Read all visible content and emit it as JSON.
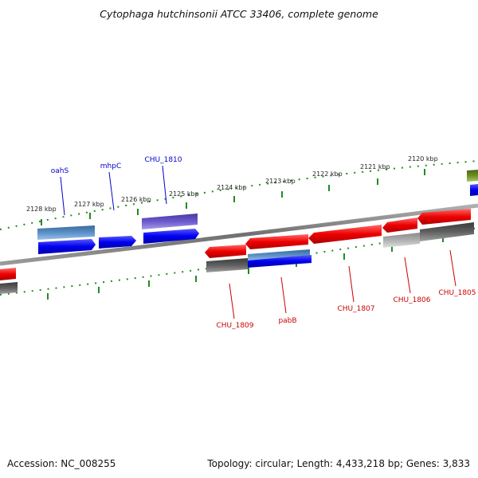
{
  "title": "Cytophaga hutchinsonii ATCC 33406, complete genome",
  "scale": {
    "ticks": [
      {
        "label": "2128 kbp"
      },
      {
        "label": "2127 kbp"
      },
      {
        "label": "2126 kbp"
      },
      {
        "label": "2125 kbp"
      },
      {
        "label": "2124 kbp"
      },
      {
        "label": "2123 kbp"
      },
      {
        "label": "2122 kbp"
      },
      {
        "label": "2121 kbp"
      },
      {
        "label": "2120 kbp"
      }
    ]
  },
  "genes_forward": [
    {
      "label": "oahS",
      "color": "#0000cc"
    },
    {
      "label": "mhpC",
      "color": "#0000cc"
    },
    {
      "label": "CHU_1810",
      "color": "#0000cc"
    }
  ],
  "genes_reverse": [
    {
      "label": "CHU_1809",
      "color": "#cc0000"
    },
    {
      "label": "pabB",
      "color": "#cc0000"
    },
    {
      "label": "CHU_1807",
      "color": "#cc0000"
    },
    {
      "label": "CHU_1806",
      "color": "#cc0000"
    },
    {
      "label": "CHU_1805",
      "color": "#cc0000"
    }
  ],
  "colors": {
    "forward_cds": "#0000ee",
    "reverse_cds": "#ee0000",
    "cog_blue": "#4a7fc0",
    "cog_purple": "#6a5acd",
    "cog_gray": "#606060",
    "cog_lightgray": "#b0b0b0",
    "cog_olive": "#6b8e23",
    "backbone": "#808080",
    "scale_ticks": "#228b22"
  },
  "footer": {
    "accession": "Accession: NC_008255",
    "summary": "Topology: circular; Length: 4,433,218 bp; Genes: 3,833"
  }
}
